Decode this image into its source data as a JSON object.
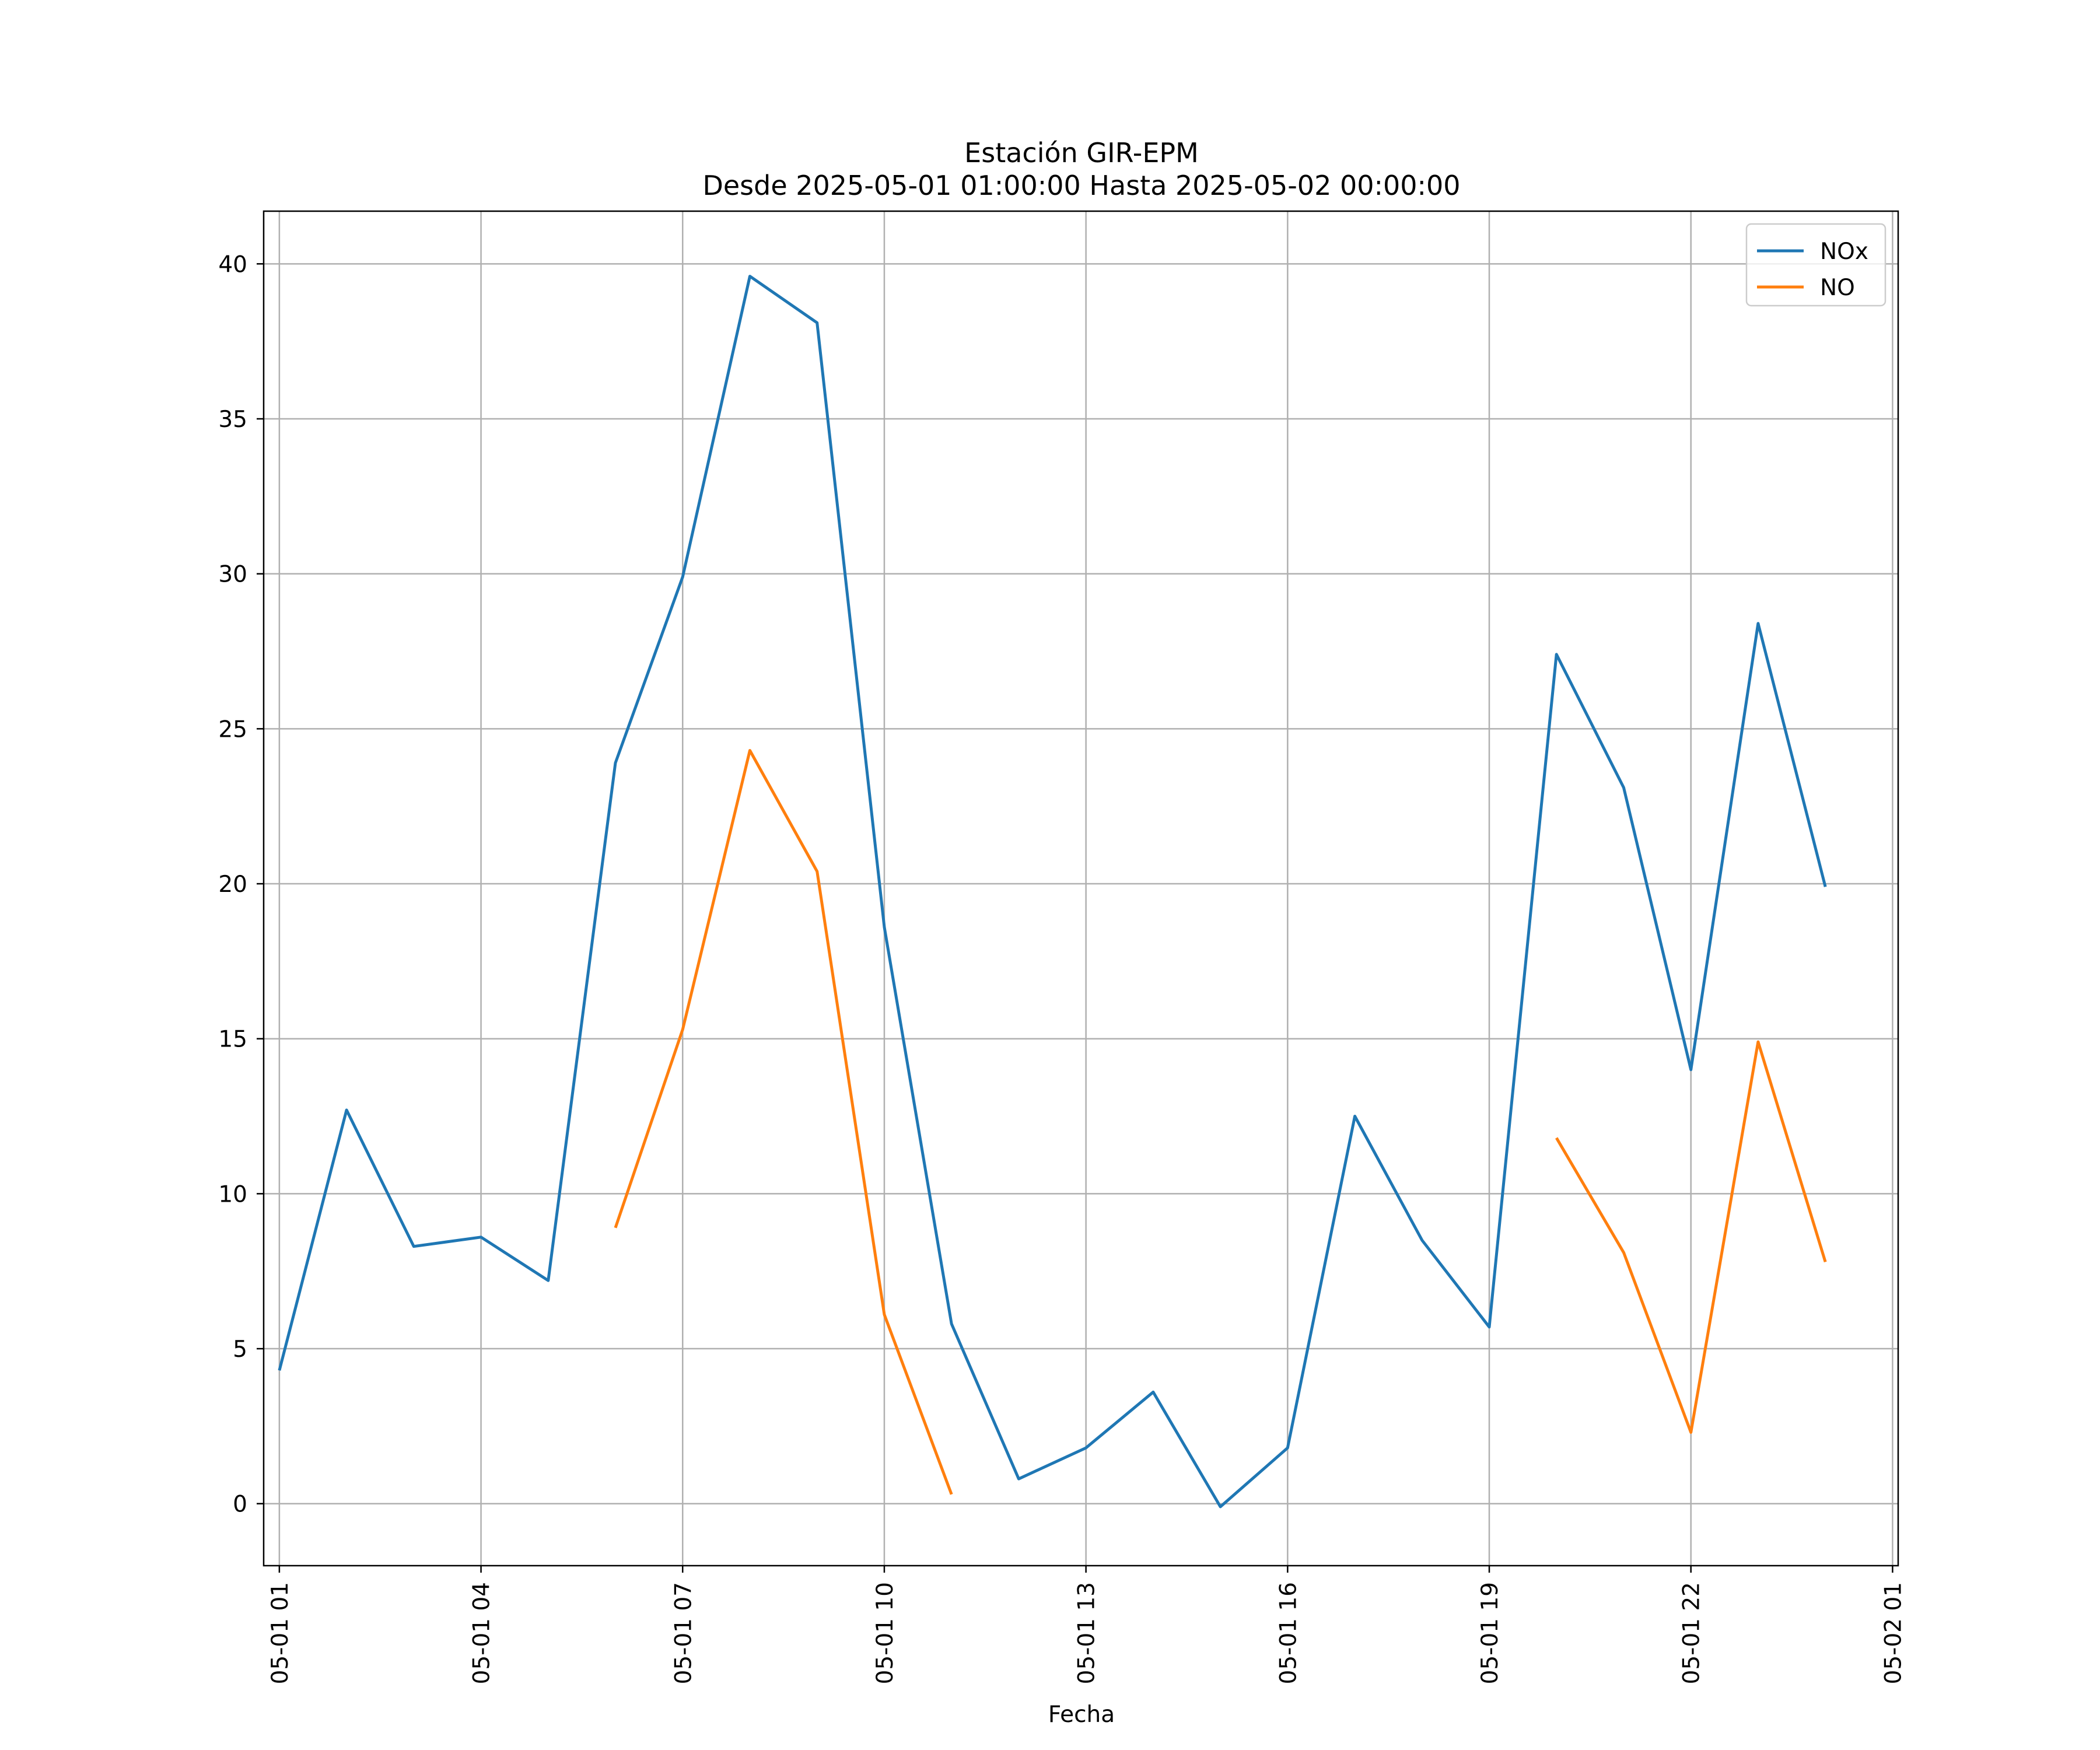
{
  "chart_data": {
    "type": "line",
    "title": "Estación GIR-EPM",
    "subtitle": "Desde 2025-05-01 01:00:00 Hasta 2025-05-02 00:00:00",
    "xlabel": "Fecha",
    "ylabel": "",
    "x": [
      "05-01 01",
      "05-01 02",
      "05-01 03",
      "05-01 04",
      "05-01 05",
      "05-01 06",
      "05-01 07",
      "05-01 08",
      "05-01 09",
      "05-01 10",
      "05-01 11",
      "05-01 12",
      "05-01 13",
      "05-01 14",
      "05-01 15",
      "05-01 16",
      "05-01 17",
      "05-01 18",
      "05-01 19",
      "05-01 20",
      "05-01 21",
      "05-01 22",
      "05-01 23",
      "05-02 00"
    ],
    "x_ticks": [
      "05-01 01",
      "05-01 04",
      "05-01 07",
      "05-01 10",
      "05-01 13",
      "05-01 16",
      "05-01 19",
      "05-01 22",
      "05-02 01"
    ],
    "y_ticks": [
      0,
      5,
      10,
      15,
      20,
      25,
      30,
      35,
      40
    ],
    "xlim": [
      "05-01 00:46",
      "05-02 01:05"
    ],
    "ylim": [
      -2.0,
      41.7
    ],
    "grid": true,
    "legend_position": "top-right",
    "series": [
      {
        "name": "NOx",
        "color": "#1f77b4",
        "values": [
          4.3,
          12.7,
          8.3,
          8.6,
          7.2,
          23.9,
          29.9,
          39.6,
          38.1,
          18.6,
          5.8,
          0.8,
          1.8,
          3.6,
          -0.1,
          1.8,
          12.5,
          8.5,
          5.7,
          27.4,
          23.1,
          14.0,
          28.4,
          19.9
        ]
      },
      {
        "name": "NO",
        "color": "#ff7f0e",
        "values": [
          null,
          null,
          null,
          null,
          null,
          8.9,
          15.3,
          24.3,
          20.4,
          6.1,
          0.3,
          null,
          null,
          null,
          null,
          null,
          null,
          null,
          null,
          11.8,
          8.1,
          2.3,
          14.9,
          7.8
        ]
      }
    ]
  }
}
